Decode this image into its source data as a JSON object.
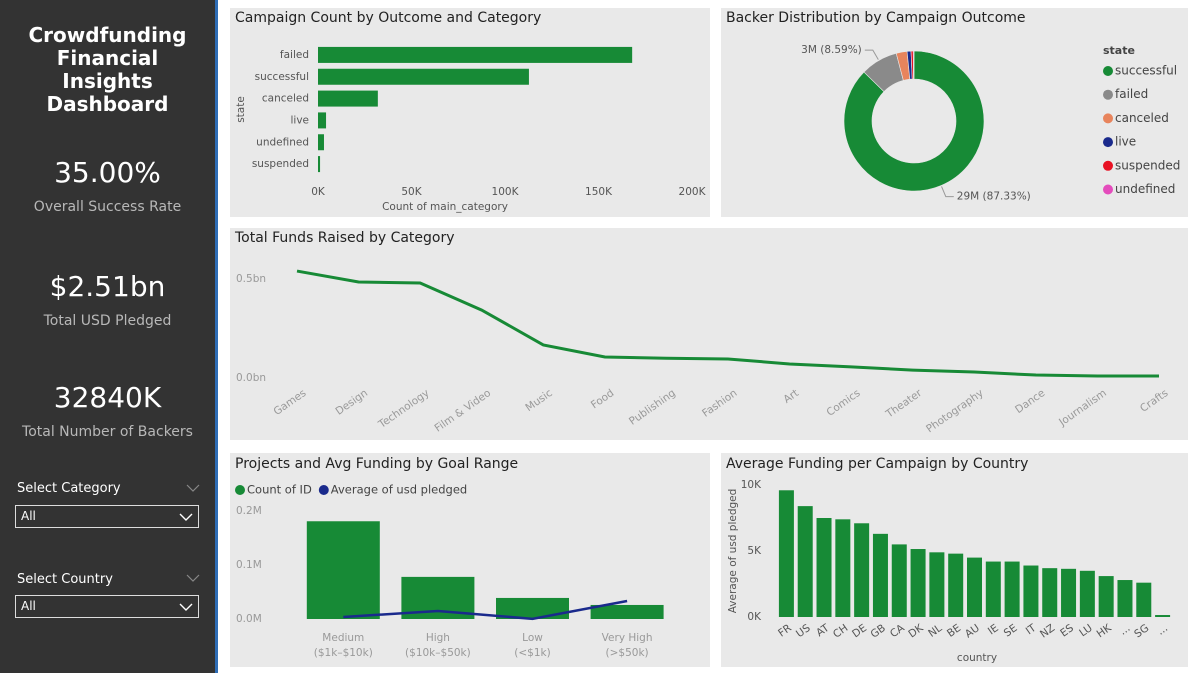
{
  "sidebar": {
    "title": "Crowdfunding Financial Insights Dashboard",
    "kpis": [
      {
        "value": "35.00%",
        "label": "Overall Success Rate"
      },
      {
        "value": "$2.51bn",
        "label": "Total USD Pledged"
      },
      {
        "value": "32840K",
        "label": "Total Number of Backers"
      }
    ],
    "slicers": [
      {
        "label": "Select Category",
        "selection": "All"
      },
      {
        "label": "Select Country",
        "selection": "All"
      }
    ]
  },
  "chart_data": [
    {
      "type": "bar",
      "orientation": "horizontal",
      "title": "Campaign Count by Outcome and Category",
      "x_label": "Count of main_category",
      "y_label": "state",
      "categories": [
        "failed",
        "successful",
        "canceled",
        "live",
        "undefined",
        "suspended"
      ],
      "values": [
        168000,
        112800,
        32000,
        4300,
        3200,
        1100
      ],
      "color": "#178a36",
      "xlim": [
        0,
        200000
      ],
      "xticks": [
        {
          "value": 0,
          "label": "0K"
        },
        {
          "value": 50000,
          "label": "50K"
        },
        {
          "value": 100000,
          "label": "100K"
        },
        {
          "value": 150000,
          "label": "150K"
        },
        {
          "value": 200000,
          "label": "200K"
        }
      ],
      "grid": false
    },
    {
      "type": "donut",
      "title": "Backer Distribution by Campaign Outcome",
      "legend_title": "state",
      "legend": "right",
      "categories": [
        "successful",
        "failed",
        "canceled",
        "live",
        "suspended",
        "undefined"
      ],
      "values": [
        28679000,
        2821000,
        821000,
        296000,
        164000,
        59000
      ],
      "value_labels": [
        "29M (87.33%)",
        "3M (8.59%)",
        null,
        null,
        null,
        null
      ],
      "colors": [
        "#178a36",
        "#8a8a8a",
        "#e8845c",
        "#1a2a8c",
        "#e81123",
        "#e44cbc"
      ]
    },
    {
      "type": "line",
      "title": "Total Funds Raised by Category",
      "categories": [
        "Games",
        "Design",
        "Technology",
        "Film & Video",
        "Music",
        "Food",
        "Publishing",
        "Fashion",
        "Art",
        "Comics",
        "Theater",
        "Photography",
        "Dance",
        "Journalism",
        "Crafts"
      ],
      "values": [
        0.54,
        0.485,
        0.48,
        0.343,
        0.167,
        0.106,
        0.1,
        0.096,
        0.071,
        0.056,
        0.04,
        0.03,
        0.015,
        0.01,
        0.01
      ],
      "color": "#178a36",
      "ylim": [
        0,
        0.6
      ],
      "yticks": [
        {
          "value": 0,
          "label": "0.0bn"
        },
        {
          "value": 0.5,
          "label": "0.5bn"
        }
      ],
      "grid": false
    },
    {
      "type": "combo",
      "title": "Projects and Avg Funding by Goal Range",
      "legend": "top",
      "categories": [
        "Medium ($1k–$10k)",
        "High ($10k–$50k)",
        "Low (<$1k)",
        "Very High (>$50k)"
      ],
      "series": [
        {
          "name": "Count of ID",
          "type": "bar",
          "color": "#178a36",
          "values": [
            181000,
            78000,
            39000,
            26000
          ]
        },
        {
          "name": "Average of usd pledged",
          "type": "line",
          "axis": "y2",
          "color": "#1a2a8c",
          "values": [
            3700,
            14800,
            300,
            33300
          ]
        }
      ],
      "ylim": [
        0,
        210000
      ],
      "yticks": [
        {
          "value": 0,
          "label": "0.0M"
        },
        {
          "value": 100000,
          "label": "0.1M"
        },
        {
          "value": 200000,
          "label": "0.2M"
        }
      ],
      "y2lim": [
        0,
        200000
      ],
      "grid": false
    },
    {
      "type": "bar",
      "orientation": "vertical",
      "title": "Average Funding per Campaign by Country",
      "x_label": "country",
      "y_label": "Average of usd pledged",
      "categories": [
        "FR",
        "US",
        "AT",
        "CH",
        "DE",
        "GB",
        "CA",
        "DK",
        "NL",
        "BE",
        "AU",
        "IE",
        "SE",
        "IT",
        "NZ",
        "ES",
        "LU",
        "HK",
        "...",
        "SG",
        "..."
      ],
      "values": [
        9600,
        8400,
        7500,
        7400,
        7100,
        6300,
        5500,
        5150,
        4900,
        4800,
        4500,
        4200,
        4200,
        3900,
        3700,
        3650,
        3500,
        3100,
        2800,
        2600,
        150
      ],
      "color": "#178a36",
      "ylim": [
        0,
        10000
      ],
      "yticks": [
        {
          "value": 0,
          "label": "0K"
        },
        {
          "value": 5000,
          "label": "5K"
        },
        {
          "value": 10000,
          "label": "10K"
        }
      ],
      "grid": false
    }
  ]
}
